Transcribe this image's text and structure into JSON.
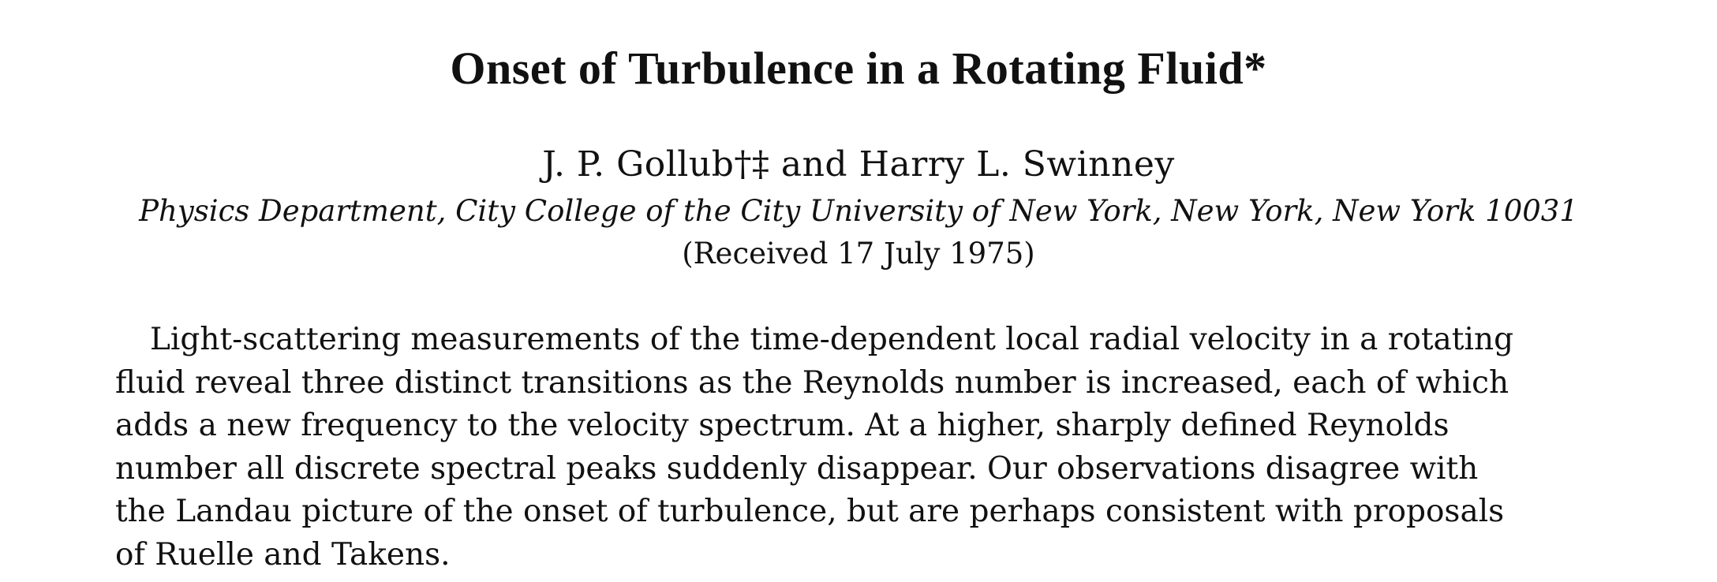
{
  "paper": {
    "title": "Onset of Turbulence in a Rotating Fluid*",
    "authors": "J. P. Gollub†‡ and Harry L. Swinney",
    "affiliation": "Physics Department, City College of the City University of New York, New York, New York 10031",
    "received": "(Received 17 July 1975)",
    "abstract_lines": [
      "Light-scattering measurements of the time-dependent local radial velocity in a rotating",
      "fluid reveal three distinct transitions as the Reynolds number is increased, each of which",
      "adds a new frequency to the velocity spectrum.  At a higher, sharply defined Reynolds",
      "number all discrete spectral peaks suddenly disappear.  Our observations disagree with",
      "the Landau picture of the onset of turbulence, but are perhaps consistent with proposals",
      "of Ruelle and Takens."
    ]
  }
}
